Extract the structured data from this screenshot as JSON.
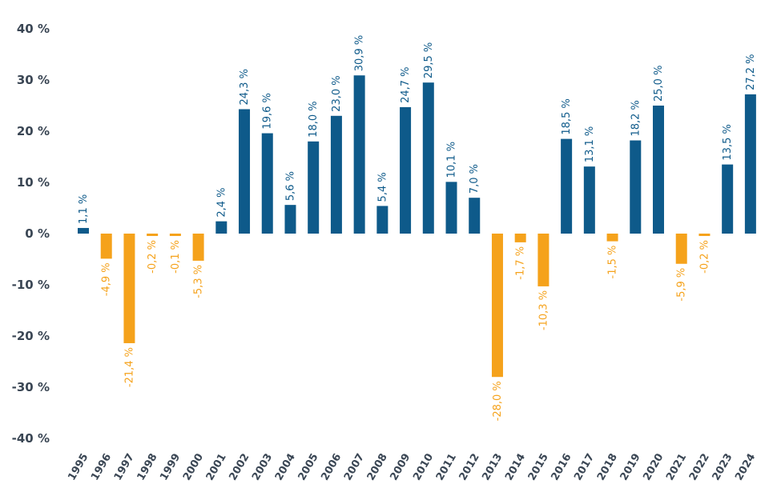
{
  "chart_data": {
    "type": "bar",
    "title": "",
    "xlabel": "",
    "ylabel": "",
    "ylim": [
      -40,
      40
    ],
    "yticks": [
      40,
      30,
      20,
      10,
      0,
      -10,
      -20,
      -30,
      -40
    ],
    "ytick_labels": [
      "40 %",
      "30 %",
      "20 %",
      "10 %",
      "0 %",
      "-10 %",
      "-20 %",
      "-30 %",
      "-40 %"
    ],
    "grid": false,
    "legend": "none",
    "colors": {
      "positive": "#0e5a8a",
      "negative": "#f5a21b",
      "axis_text": "#3a4654"
    },
    "categories": [
      "1995",
      "1996",
      "1997",
      "1998",
      "1999",
      "2000",
      "2001",
      "2002",
      "2003",
      "2004",
      "2005",
      "2006",
      "2007",
      "2008",
      "2009",
      "2010",
      "2011",
      "2012",
      "2013",
      "2014",
      "2015",
      "2016",
      "2017",
      "2018",
      "2019",
      "2020",
      "2021",
      "2022",
      "2023",
      "2024"
    ],
    "values": [
      1.1,
      -4.9,
      -21.4,
      -0.2,
      -0.1,
      -5.3,
      2.4,
      24.3,
      19.6,
      5.6,
      18.0,
      23.0,
      30.9,
      5.4,
      24.7,
      29.5,
      10.1,
      7.0,
      -28.0,
      -1.7,
      -10.3,
      18.5,
      13.1,
      -1.5,
      18.2,
      25.0,
      -5.9,
      -0.2,
      13.5,
      27.2
    ],
    "value_labels": [
      "1,1 %",
      "-4,9 %",
      "-21,4 %",
      "-0,2 %",
      "-0,1 %",
      "-5,3 %",
      "2,4 %",
      "24,3 %",
      "19,6 %",
      "5,6 %",
      "18,0 %",
      "23,0 %",
      "30,9 %",
      "5,4 %",
      "24,7 %",
      "29,5 %",
      "10,1 %",
      "7,0 %",
      "-28,0 %",
      "-1,7 %",
      "-10,3 %",
      "18,5 %",
      "13,1 %",
      "-1,5 %",
      "18,2 %",
      "25,0 %",
      "-5,9 %",
      "-0,2 %",
      "13,5 %",
      "27,2 %"
    ]
  }
}
